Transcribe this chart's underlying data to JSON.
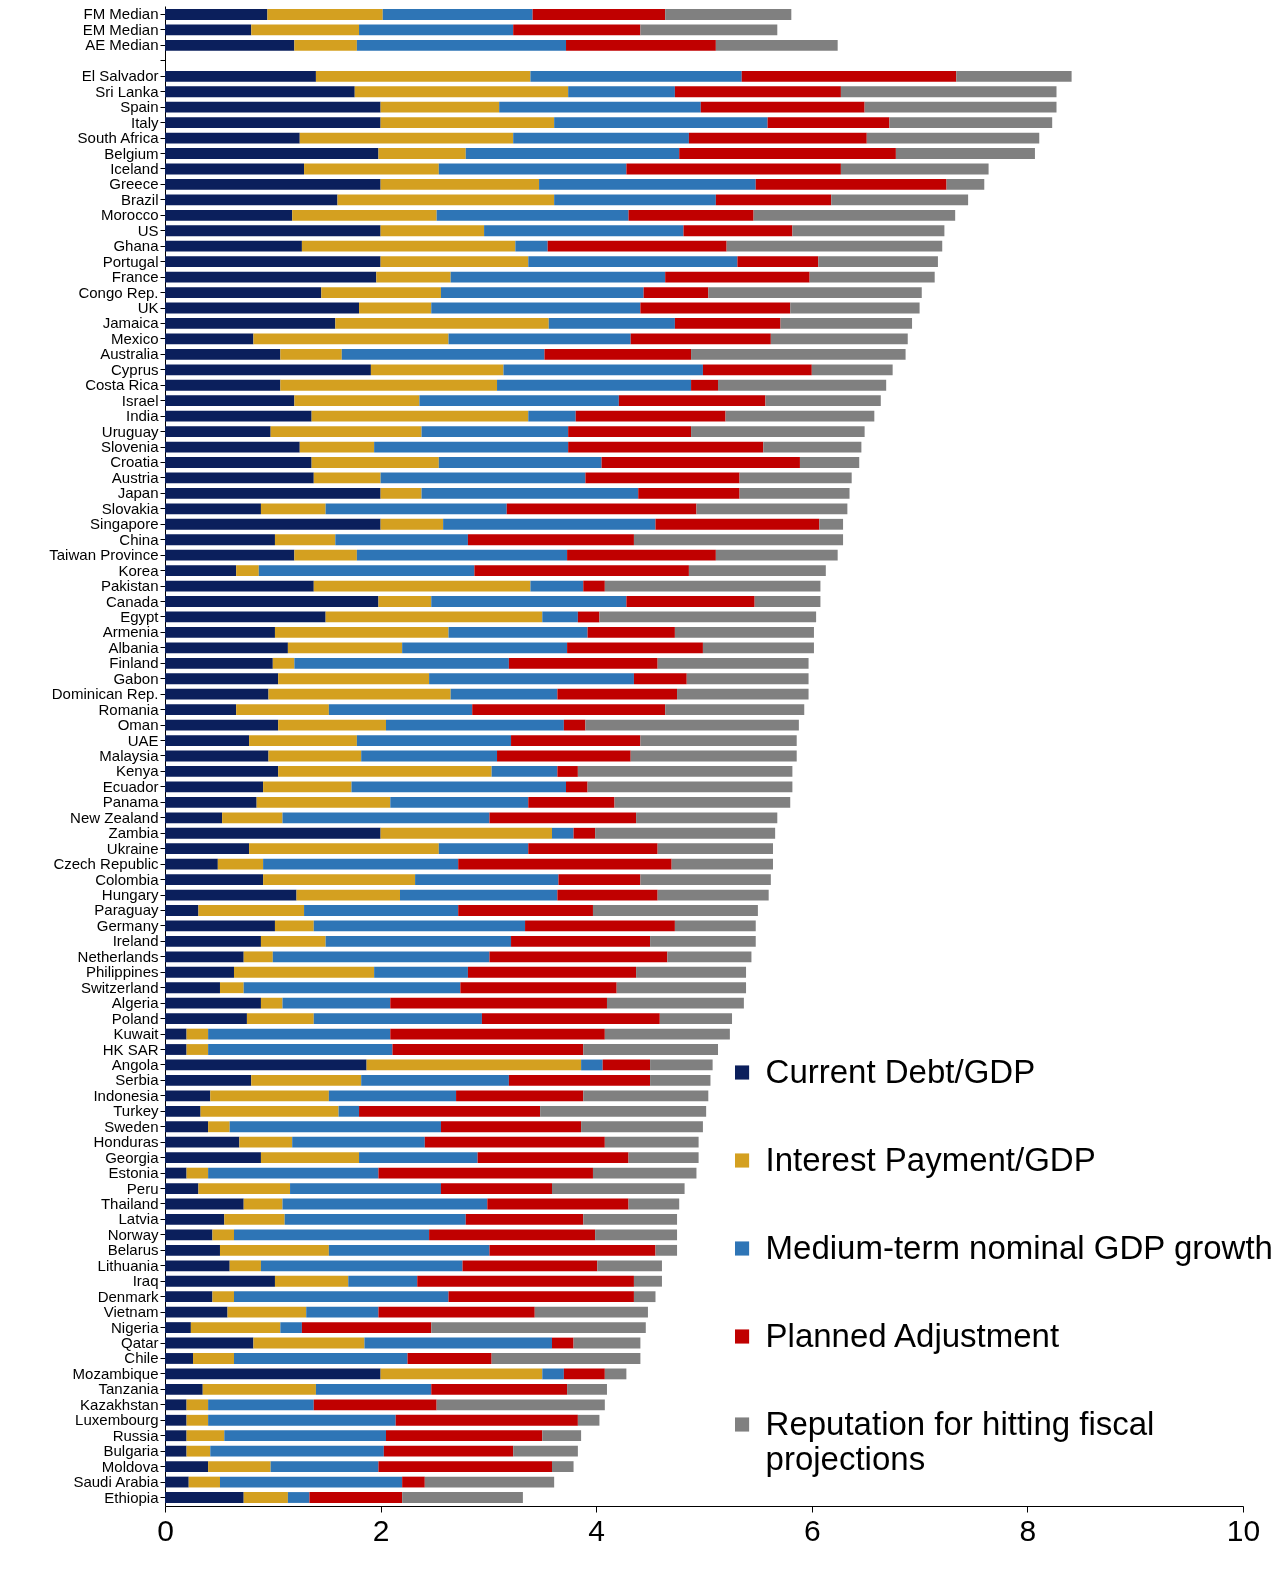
{
  "chart_data": {
    "type": "bar",
    "orientation": "horizontal",
    "stacked": true,
    "legend": "bottom right",
    "categories": [
      "FM Median",
      "EM Median",
      "AE Median",
      null,
      "El Salvador",
      "Sri Lanka",
      "Spain",
      "Italy",
      "South Africa",
      "Belgium",
      "Iceland",
      "Greece",
      "Brazil",
      "Morocco",
      "US",
      "Ghana",
      "Portugal",
      "France",
      "Congo Rep.",
      "UK",
      "Jamaica",
      "Mexico",
      "Australia",
      "Cyprus",
      "Costa Rica",
      "Israel",
      "India",
      "Uruguay",
      "Slovenia",
      "Croatia",
      "Austria",
      "Japan",
      "Slovakia",
      "Singapore",
      "China",
      "Taiwan Province",
      "Korea",
      "Pakistan",
      "Canada",
      "Egypt",
      "Armenia",
      "Albania",
      "Finland",
      "Gabon",
      "Dominican Rep.",
      "Romania",
      "Oman",
      "UAE",
      "Malaysia",
      "Kenya",
      "Ecuador",
      "Panama",
      "New Zealand",
      "Zambia",
      "Ukraine",
      "Czech Republic",
      "Colombia",
      "Hungary",
      "Paraguay",
      "Germany",
      "Ireland",
      "Netherlands",
      "Philippines",
      "Switzerland",
      "Algeria",
      "Poland",
      "Kuwait",
      "HK SAR",
      "Angola",
      "Serbia",
      "Indonesia",
      "Turkey",
      "Sweden",
      "Honduras",
      "Georgia",
      "Estonia",
      "Peru",
      "Thailand",
      "Latvia",
      "Norway",
      "Belarus",
      "Lithuania",
      "Iraq",
      "Denmark",
      "Vietnam",
      "Nigeria",
      "Qatar",
      "Chile",
      "Mozambique",
      "Tanzania",
      "Kazakhstan",
      "Luxembourg",
      "Russia",
      "Bulgaria",
      "Moldova",
      "Saudi Arabia",
      "Ethiopia"
    ],
    "series": [
      {
        "name": "Current Debt/GDP",
        "color": "#0b1f5c",
        "values": [
          0.95,
          0.8,
          1.2,
          null,
          1.4,
          1.76,
          2.0,
          2.0,
          1.25,
          1.98,
          1.29,
          2.0,
          1.6,
          1.18,
          2.0,
          1.27,
          2.0,
          1.96,
          1.45,
          1.8,
          1.58,
          0.82,
          1.07,
          1.91,
          1.07,
          1.2,
          1.36,
          0.98,
          1.25,
          1.36,
          1.38,
          2.0,
          0.89,
          2.0,
          1.02,
          1.2,
          0.66,
          1.38,
          1.98,
          1.49,
          1.02,
          1.14,
          1.0,
          1.05,
          0.96,
          0.66,
          1.05,
          0.78,
          0.96,
          1.05,
          0.91,
          0.85,
          0.53,
          2.0,
          0.78,
          0.49,
          0.91,
          1.22,
          0.31,
          1.02,
          0.89,
          0.73,
          0.64,
          0.51,
          0.89,
          0.76,
          0.2,
          0.2,
          1.87,
          0.8,
          0.42,
          0.33,
          0.4,
          0.69,
          0.89,
          0.2,
          0.31,
          0.73,
          0.55,
          0.44,
          0.51,
          0.6,
          1.02,
          0.44,
          0.58,
          0.24,
          0.82,
          0.26,
          2.0,
          0.35,
          0.2,
          0.2,
          0.2,
          0.2,
          0.4,
          0.22,
          0.73
        ]
      },
      {
        "name": "Interest Payment/GDP",
        "color": "#d4a020",
        "values": [
          1.07,
          1.0,
          0.58,
          null,
          1.99,
          1.98,
          1.1,
          1.61,
          1.98,
          0.81,
          1.25,
          1.47,
          2.01,
          1.34,
          0.96,
          1.98,
          1.37,
          0.69,
          1.11,
          0.67,
          1.98,
          1.81,
          0.57,
          1.23,
          2.01,
          1.16,
          2.01,
          1.4,
          0.69,
          1.18,
          0.62,
          0.38,
          0.6,
          0.58,
          0.56,
          0.58,
          0.21,
          2.01,
          0.49,
          2.01,
          1.61,
          1.06,
          0.2,
          1.4,
          1.69,
          0.86,
          1.0,
          1.0,
          0.86,
          1.98,
          0.82,
          1.24,
          0.56,
          1.59,
          1.76,
          0.42,
          1.41,
          0.96,
          0.98,
          0.36,
          0.6,
          0.27,
          1.3,
          0.22,
          0.2,
          0.62,
          0.2,
          0.2,
          1.99,
          1.02,
          1.1,
          1.28,
          0.2,
          0.49,
          0.91,
          0.2,
          0.85,
          0.36,
          0.56,
          0.2,
          1.01,
          0.29,
          0.68,
          0.2,
          0.73,
          0.83,
          1.03,
          0.38,
          1.5,
          1.05,
          0.2,
          0.2,
          0.35,
          0.22,
          0.58,
          0.29,
          0.41
        ]
      },
      {
        "name": "Medium-term nominal GDP growth",
        "color": "#2e75b6",
        "values": [
          1.39,
          1.43,
          1.94,
          null,
          1.96,
          0.99,
          1.87,
          1.98,
          1.63,
          1.98,
          1.74,
          2.01,
          1.5,
          1.78,
          1.85,
          0.3,
          1.94,
          1.99,
          1.88,
          1.94,
          1.17,
          1.69,
          1.88,
          1.85,
          1.8,
          1.85,
          0.44,
          1.36,
          1.8,
          1.51,
          1.9,
          2.01,
          1.68,
          1.97,
          1.23,
          1.95,
          2.0,
          0.49,
          1.81,
          0.33,
          1.29,
          1.53,
          1.99,
          1.9,
          0.99,
          1.33,
          1.65,
          1.43,
          1.26,
          0.61,
          1.99,
          1.28,
          1.92,
          0.2,
          0.83,
          1.81,
          1.33,
          1.46,
          1.43,
          1.96,
          1.72,
          2.01,
          0.87,
          2.01,
          1.0,
          1.56,
          1.69,
          1.71,
          0.2,
          1.37,
          1.18,
          0.19,
          1.96,
          1.23,
          1.1,
          1.58,
          1.4,
          1.9,
          1.68,
          1.81,
          1.49,
          1.87,
          0.64,
          1.99,
          0.67,
          0.2,
          1.74,
          1.61,
          0.2,
          1.07,
          0.98,
          1.74,
          1.5,
          1.61,
          1.0,
          1.69,
          0.2
        ]
      },
      {
        "name": "Planned Adjustment",
        "color": "#c00000",
        "values": [
          1.23,
          1.18,
          1.39,
          null,
          1.99,
          1.54,
          1.52,
          1.13,
          1.65,
          2.01,
          1.99,
          1.77,
          1.07,
          1.16,
          1.01,
          1.66,
          0.75,
          1.34,
          0.6,
          1.39,
          0.98,
          1.3,
          1.36,
          1.01,
          0.25,
          1.36,
          1.39,
          1.14,
          1.81,
          1.84,
          1.43,
          0.94,
          1.76,
          1.52,
          1.54,
          1.38,
          1.99,
          0.2,
          1.19,
          0.2,
          0.81,
          1.26,
          1.38,
          0.49,
          1.11,
          1.79,
          0.2,
          1.2,
          1.24,
          0.19,
          0.2,
          0.8,
          1.36,
          0.2,
          1.2,
          1.98,
          0.76,
          0.93,
          1.25,
          1.39,
          1.29,
          1.65,
          1.56,
          1.45,
          2.01,
          1.65,
          1.99,
          1.77,
          0.44,
          1.31,
          1.18,
          1.68,
          1.3,
          1.67,
          1.4,
          1.99,
          1.03,
          1.31,
          1.09,
          1.54,
          1.54,
          1.25,
          2.01,
          1.72,
          1.45,
          1.2,
          0.2,
          0.78,
          0.38,
          1.26,
          1.14,
          1.69,
          1.45,
          1.2,
          1.61,
          0.21,
          0.86
        ]
      },
      {
        "name": "Reputation for hitting fiscal projections",
        "color": "#808080",
        "values": [
          1.17,
          1.27,
          1.13,
          null,
          1.07,
          2.0,
          1.78,
          1.51,
          1.6,
          1.29,
          1.37,
          0.35,
          1.27,
          1.87,
          1.41,
          2.0,
          1.11,
          1.16,
          1.98,
          1.2,
          1.22,
          1.27,
          1.99,
          0.75,
          1.56,
          1.07,
          1.38,
          1.61,
          0.91,
          0.55,
          1.04,
          1.02,
          1.4,
          0.22,
          1.94,
          1.13,
          1.27,
          2.0,
          0.61,
          2.01,
          1.29,
          1.03,
          1.4,
          1.13,
          1.22,
          1.29,
          1.98,
          1.45,
          1.54,
          1.99,
          1.9,
          1.63,
          1.31,
          1.67,
          1.07,
          0.94,
          1.21,
          1.03,
          1.53,
          0.75,
          0.98,
          0.78,
          1.02,
          1.2,
          1.27,
          0.67,
          1.16,
          1.25,
          0.58,
          0.56,
          1.16,
          1.54,
          1.13,
          0.87,
          0.65,
          0.96,
          1.23,
          0.47,
          0.87,
          0.76,
          0.2,
          0.6,
          0.26,
          0.2,
          1.05,
          1.99,
          0.62,
          1.38,
          0.2,
          0.37,
          1.56,
          0.2,
          0.36,
          0.6,
          0.2,
          1.2,
          1.12
        ]
      }
    ],
    "xlim": [
      0,
      10
    ],
    "xticks": [
      0,
      2,
      4,
      6,
      8,
      10
    ]
  }
}
